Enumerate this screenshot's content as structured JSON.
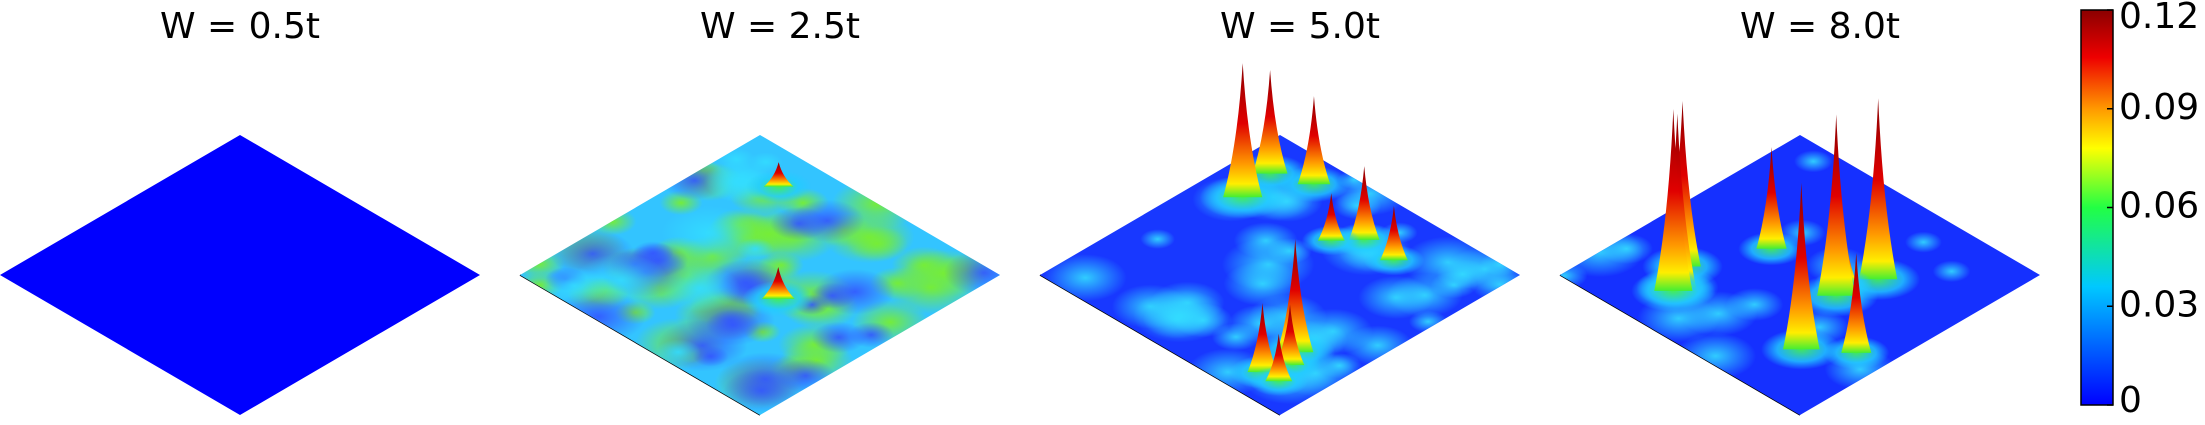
{
  "chart_data": {
    "type": "surface",
    "titles": [
      "W = 0.5t",
      "W = 2.5t",
      "W = 5.0t",
      "W = 8.0t"
    ],
    "colorbar": {
      "ylim": [
        0,
        0.12
      ],
      "yticks": [
        0,
        0.03,
        0.06,
        0.09,
        0.12
      ]
    }
  }
}
